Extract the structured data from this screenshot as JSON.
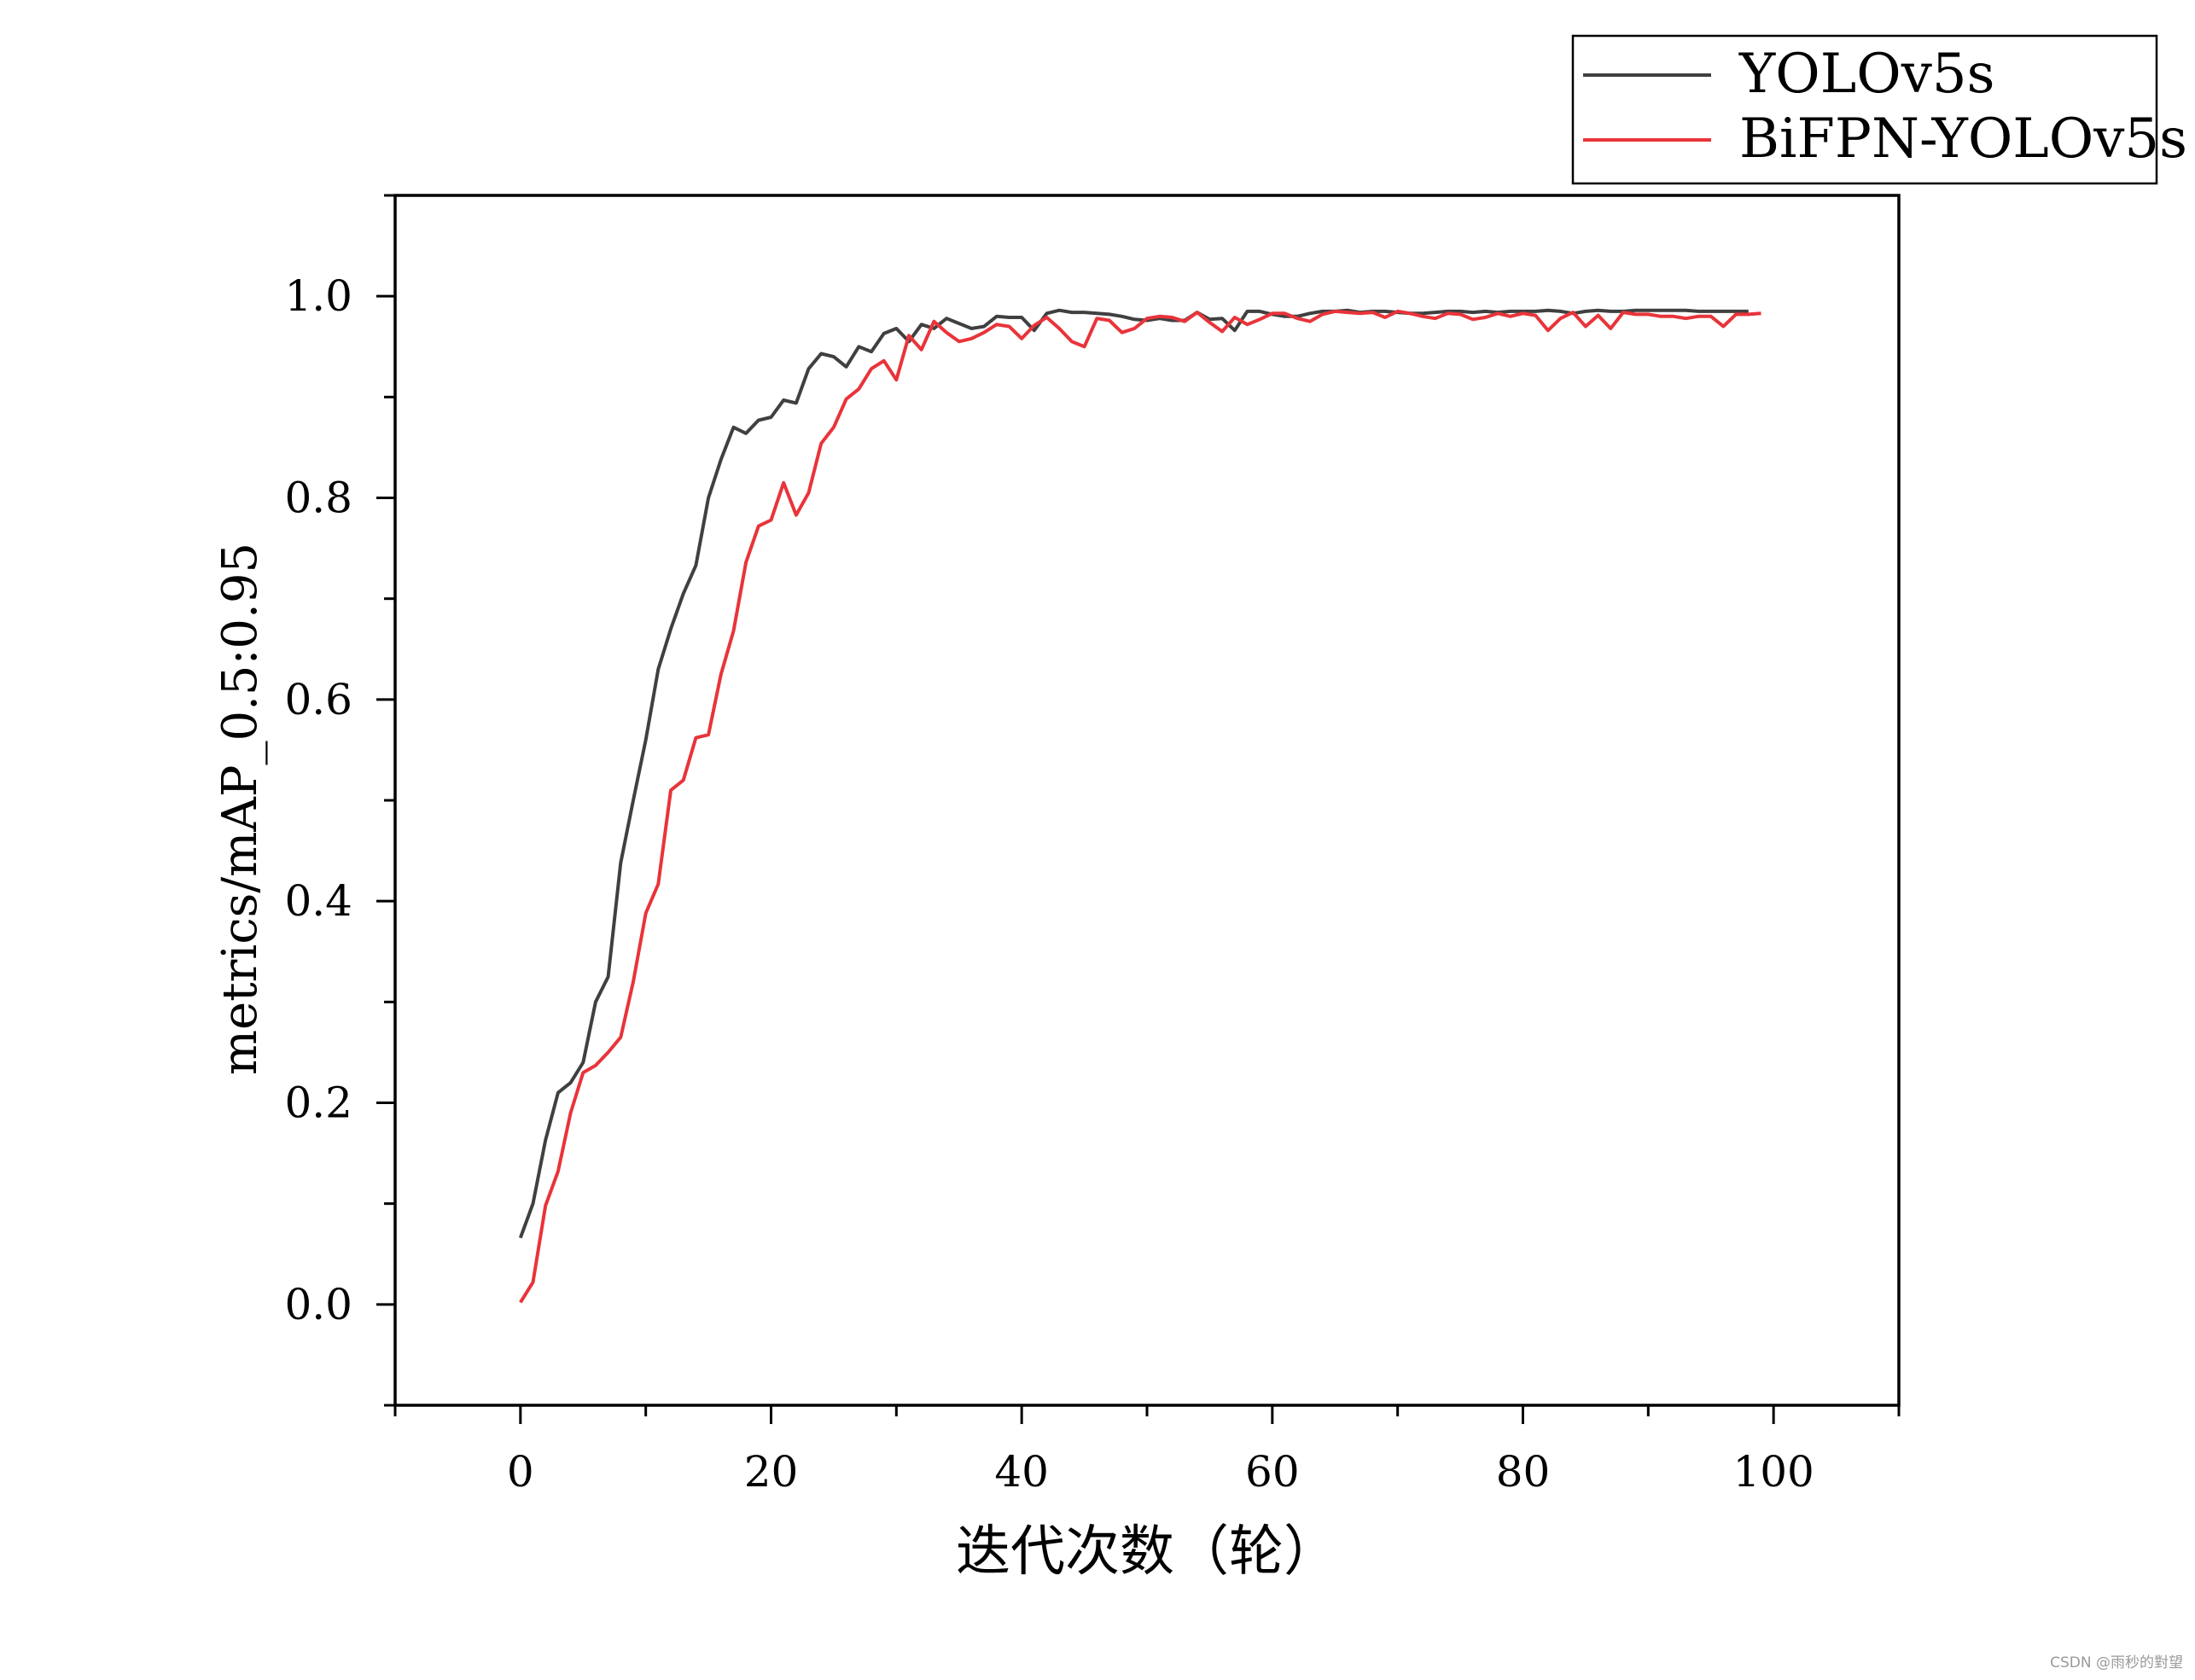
{
  "chart_data": {
    "type": "line",
    "xlabel": "迭代次数（轮）",
    "ylabel": "metrics/mAP_0.5:0.95",
    "xlim": [
      -10,
      110
    ],
    "ylim": [
      -0.1,
      1.1
    ],
    "xticks": [
      0,
      20,
      40,
      60,
      80,
      100
    ],
    "yticks": [
      0.0,
      0.2,
      0.4,
      0.6,
      0.8,
      1.0
    ],
    "xtick_labels": [
      "0",
      "20",
      "40",
      "60",
      "80",
      "100"
    ],
    "ytick_labels": [
      "0.0",
      "0.2",
      "0.4",
      "0.6",
      "0.8",
      "1.0"
    ],
    "grid": false,
    "legend": "top-right, above plot",
    "series": [
      {
        "name": "YOLOv5s",
        "color": "#404040",
        "x": [
          0,
          1,
          2,
          3,
          4,
          5,
          6,
          7,
          8,
          9,
          10,
          11,
          12,
          13,
          14,
          15,
          16,
          17,
          18,
          19,
          20,
          21,
          22,
          23,
          24,
          25,
          26,
          27,
          28,
          29,
          30,
          31,
          32,
          33,
          34,
          35,
          36,
          37,
          38,
          39,
          40,
          41,
          42,
          43,
          44,
          45,
          46,
          47,
          48,
          49,
          50,
          51,
          52,
          53,
          54,
          55,
          56,
          57,
          58,
          59,
          60,
          61,
          62,
          63,
          64,
          65,
          66,
          67,
          68,
          69,
          70,
          71,
          72,
          73,
          74,
          75,
          76,
          77,
          78,
          79,
          80,
          81,
          82,
          83,
          84,
          85,
          86,
          87,
          88,
          89,
          90,
          91,
          92,
          93,
          94,
          95,
          96,
          97,
          98
        ],
        "values": [
          0.066,
          0.1,
          0.163,
          0.21,
          0.22,
          0.24,
          0.3,
          0.325,
          0.438,
          0.5,
          0.56,
          0.63,
          0.67,
          0.705,
          0.733,
          0.8,
          0.838,
          0.87,
          0.864,
          0.877,
          0.88,
          0.897,
          0.894,
          0.928,
          0.943,
          0.94,
          0.93,
          0.95,
          0.945,
          0.963,
          0.968,
          0.955,
          0.972,
          0.968,
          0.978,
          0.973,
          0.968,
          0.97,
          0.98,
          0.979,
          0.979,
          0.966,
          0.983,
          0.986,
          0.984,
          0.984,
          0.983,
          0.982,
          0.98,
          0.977,
          0.976,
          0.978,
          0.976,
          0.976,
          0.984,
          0.977,
          0.978,
          0.966,
          0.985,
          0.985,
          0.982,
          0.98,
          0.98,
          0.983,
          0.985,
          0.985,
          0.986,
          0.984,
          0.985,
          0.985,
          0.984,
          0.983,
          0.983,
          0.984,
          0.985,
          0.985,
          0.984,
          0.985,
          0.984,
          0.985,
          0.985,
          0.985,
          0.986,
          0.985,
          0.983,
          0.985,
          0.986,
          0.985,
          0.985,
          0.986,
          0.986,
          0.986,
          0.986,
          0.986,
          0.985,
          0.985,
          0.985,
          0.985,
          0.985
        ]
      },
      {
        "name": "BiFPN-YOLOv5s",
        "color": "#e8343a",
        "x": [
          0,
          1,
          2,
          3,
          4,
          5,
          6,
          7,
          8,
          9,
          10,
          11,
          12,
          13,
          14,
          15,
          16,
          17,
          18,
          19,
          20,
          21,
          22,
          23,
          24,
          25,
          26,
          27,
          28,
          29,
          30,
          31,
          32,
          33,
          34,
          35,
          36,
          37,
          38,
          39,
          40,
          41,
          42,
          43,
          44,
          45,
          46,
          47,
          48,
          49,
          50,
          51,
          52,
          53,
          54,
          55,
          56,
          57,
          58,
          59,
          60,
          61,
          62,
          63,
          64,
          65,
          66,
          67,
          68,
          69,
          70,
          71,
          72,
          73,
          74,
          75,
          76,
          77,
          78,
          79,
          80,
          81,
          82,
          83,
          84,
          85,
          86,
          87,
          88,
          89,
          90,
          91,
          92,
          93,
          94,
          95,
          96,
          97,
          98,
          99
        ],
        "values": [
          0.002,
          0.022,
          0.098,
          0.132,
          0.19,
          0.23,
          0.237,
          0.25,
          0.265,
          0.32,
          0.388,
          0.417,
          0.51,
          0.52,
          0.562,
          0.565,
          0.625,
          0.668,
          0.736,
          0.772,
          0.778,
          0.815,
          0.783,
          0.805,
          0.854,
          0.87,
          0.898,
          0.908,
          0.928,
          0.936,
          0.917,
          0.961,
          0.947,
          0.975,
          0.964,
          0.955,
          0.958,
          0.964,
          0.972,
          0.97,
          0.958,
          0.971,
          0.979,
          0.968,
          0.955,
          0.95,
          0.978,
          0.976,
          0.964,
          0.968,
          0.978,
          0.98,
          0.979,
          0.975,
          0.984,
          0.974,
          0.965,
          0.979,
          0.972,
          0.977,
          0.983,
          0.983,
          0.978,
          0.975,
          0.982,
          0.985,
          0.984,
          0.983,
          0.984,
          0.979,
          0.985,
          0.983,
          0.98,
          0.978,
          0.983,
          0.982,
          0.977,
          0.979,
          0.983,
          0.98,
          0.983,
          0.981,
          0.966,
          0.978,
          0.984,
          0.97,
          0.981,
          0.968,
          0.984,
          0.982,
          0.982,
          0.98,
          0.98,
          0.978,
          0.98,
          0.98,
          0.97,
          0.982,
          0.982,
          0.983
        ]
      }
    ]
  },
  "watermark": "CSDN @雨秒的對望"
}
